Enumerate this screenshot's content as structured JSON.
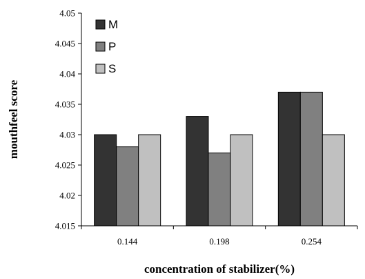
{
  "chart_data": {
    "type": "bar",
    "categories": [
      "0.144",
      "0.198",
      "0.254"
    ],
    "series": [
      {
        "name": "M",
        "color": "#333333",
        "values": [
          4.03,
          4.033,
          4.037
        ]
      },
      {
        "name": "P",
        "color": "#808080",
        "values": [
          4.028,
          4.027,
          4.037
        ]
      },
      {
        "name": "S",
        "color": "#c0c0c0",
        "values": [
          4.03,
          4.03,
          4.03
        ]
      }
    ],
    "title": "",
    "xlabel": "concentration of stabilizer(%)",
    "ylabel": "mouthfeel score",
    "ylim": [
      4.015,
      4.05
    ],
    "yticks": [
      "4.015",
      "4.02",
      "4.025",
      "4.03",
      "4.035",
      "4.04",
      "4.045",
      "4.05"
    ],
    "grid": false,
    "legend_position": "top-left"
  }
}
